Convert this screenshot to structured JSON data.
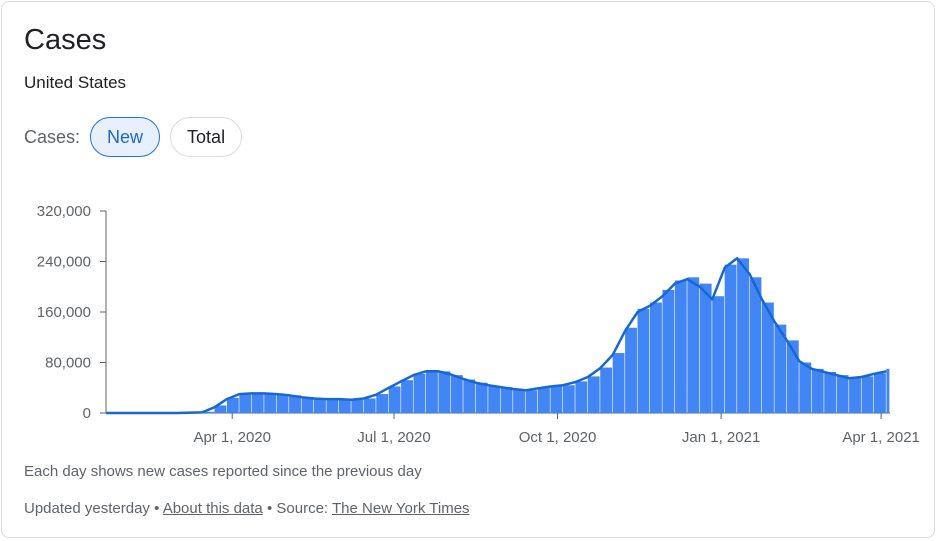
{
  "card": {
    "title": "Cases",
    "location": "United States"
  },
  "toggle": {
    "label": "Cases:",
    "options": [
      "New",
      "Total"
    ],
    "selected": "New"
  },
  "note": "Each day shows new cases reported since the previous day",
  "footer": {
    "updated": "Updated yesterday",
    "separator": "•",
    "about_link": "About this data",
    "source_prefix": "Source:",
    "source_link": "The New York Times"
  },
  "colors": {
    "bar": "#4285f4",
    "line": "#1967d2",
    "axis": "#5f6368",
    "active_chip_bg": "#e8f0fe"
  },
  "chart_data": {
    "type": "bar",
    "title": "Cases",
    "subtitle": "United States",
    "xlabel": "",
    "ylabel": "",
    "ylim": [
      0,
      320000
    ],
    "yticks": [
      0,
      80000,
      160000,
      240000,
      320000
    ],
    "ytick_labels": [
      "0",
      "80,000",
      "160,000",
      "240,000",
      "320,000"
    ],
    "xticks": [
      "2020-04-01",
      "2020-07-01",
      "2020-10-01",
      "2021-01-01",
      "2021-04-01"
    ],
    "xtick_labels": [
      "Apr 1, 2020",
      "Jul 1, 2020",
      "Oct 1, 2020",
      "Jan 1, 2021",
      "Apr 1, 2021"
    ],
    "xlim": [
      "2020-01-21",
      "2021-04-06"
    ],
    "grid": false,
    "legend": "none",
    "series": [
      {
        "kind": "bar",
        "description": "daily new cases",
        "x": [
          "2020-01-21",
          "2020-03-01",
          "2020-03-15",
          "2020-03-22",
          "2020-03-29",
          "2020-04-05",
          "2020-04-12",
          "2020-04-19",
          "2020-04-26",
          "2020-05-03",
          "2020-05-10",
          "2020-05-17",
          "2020-05-24",
          "2020-05-31",
          "2020-06-07",
          "2020-06-14",
          "2020-06-21",
          "2020-06-28",
          "2020-07-05",
          "2020-07-12",
          "2020-07-19",
          "2020-07-26",
          "2020-08-02",
          "2020-08-09",
          "2020-08-16",
          "2020-08-23",
          "2020-08-30",
          "2020-09-06",
          "2020-09-13",
          "2020-09-20",
          "2020-09-27",
          "2020-10-04",
          "2020-10-11",
          "2020-10-18",
          "2020-10-25",
          "2020-11-01",
          "2020-11-08",
          "2020-11-15",
          "2020-11-22",
          "2020-11-29",
          "2020-12-06",
          "2020-12-13",
          "2020-12-20",
          "2020-12-27",
          "2021-01-03",
          "2021-01-10",
          "2021-01-17",
          "2021-01-24",
          "2021-01-31",
          "2021-02-07",
          "2021-02-14",
          "2021-02-21",
          "2021-02-28",
          "2021-03-07",
          "2021-03-14",
          "2021-03-21",
          "2021-03-28",
          "2021-04-04"
        ],
        "values": [
          0,
          0,
          2000,
          12000,
          24000,
          31000,
          32000,
          31000,
          30000,
          28000,
          25000,
          23000,
          22000,
          22000,
          21000,
          23000,
          30000,
          42000,
          52000,
          62000,
          67000,
          66000,
          60000,
          53000,
          48000,
          43000,
          41000,
          38000,
          36000,
          40000,
          42000,
          44000,
          50000,
          58000,
          72000,
          95000,
          135000,
          165000,
          175000,
          195000,
          210000,
          215000,
          205000,
          185000,
          235000,
          245000,
          215000,
          175000,
          140000,
          115000,
          80000,
          70000,
          65000,
          60000,
          55000,
          58000,
          63000,
          70000
        ]
      },
      {
        "kind": "line",
        "description": "7-day average",
        "x": [
          "2020-01-21",
          "2020-03-01",
          "2020-03-15",
          "2020-03-22",
          "2020-03-29",
          "2020-04-05",
          "2020-04-12",
          "2020-04-19",
          "2020-04-26",
          "2020-05-03",
          "2020-05-10",
          "2020-05-17",
          "2020-05-24",
          "2020-05-31",
          "2020-06-07",
          "2020-06-14",
          "2020-06-21",
          "2020-06-28",
          "2020-07-05",
          "2020-07-12",
          "2020-07-19",
          "2020-07-26",
          "2020-08-02",
          "2020-08-09",
          "2020-08-16",
          "2020-08-23",
          "2020-08-30",
          "2020-09-06",
          "2020-09-13",
          "2020-09-20",
          "2020-09-27",
          "2020-10-04",
          "2020-10-11",
          "2020-10-18",
          "2020-10-25",
          "2020-11-01",
          "2020-11-08",
          "2020-11-15",
          "2020-11-22",
          "2020-11-29",
          "2020-12-06",
          "2020-12-13",
          "2020-12-20",
          "2020-12-27",
          "2021-01-03",
          "2021-01-10",
          "2021-01-17",
          "2021-01-24",
          "2021-01-31",
          "2021-02-07",
          "2021-02-14",
          "2021-02-21",
          "2021-02-28",
          "2021-03-07",
          "2021-03-14",
          "2021-03-21",
          "2021-03-28",
          "2021-04-04"
        ],
        "values": [
          0,
          0,
          1000,
          9000,
          22000,
          30000,
          31000,
          31000,
          30000,
          28000,
          25000,
          23000,
          22000,
          22000,
          21000,
          23000,
          29000,
          40000,
          50000,
          60000,
          66000,
          66000,
          61000,
          54000,
          48000,
          44000,
          41000,
          38000,
          36000,
          39000,
          42000,
          44000,
          49000,
          57000,
          71000,
          92000,
          130000,
          160000,
          170000,
          185000,
          205000,
          212000,
          200000,
          180000,
          230000,
          245000,
          220000,
          180000,
          145000,
          115000,
          82000,
          70000,
          65000,
          60000,
          55000,
          57000,
          62000,
          66000
        ]
      }
    ]
  }
}
